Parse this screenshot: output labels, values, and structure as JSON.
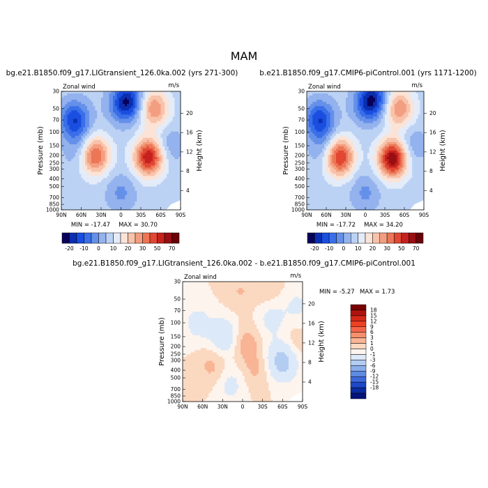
{
  "title": "MAM",
  "chart_data": [
    {
      "type": "heatmap",
      "title": "bg.e21.B1850.f09_g17.LIGtransient_126.0ka.002 (yrs 271-300)",
      "variable": "Zonal wind",
      "units": "m/s",
      "xlabel": "",
      "ylabel": "Pressure (mb)",
      "ylabel_right": "Height (km)",
      "x_ticks": [
        "90N",
        "60N",
        "30N",
        "0",
        "30S",
        "60S",
        "90S"
      ],
      "y_ticks": [
        30,
        50,
        70,
        100,
        150,
        200,
        250,
        300,
        400,
        500,
        700,
        850,
        1000
      ],
      "y_scale": "log",
      "height_ticks": [
        4,
        8,
        12,
        16,
        20
      ],
      "min_label": "MIN = -17.47",
      "max_label": "MAX = 30.70",
      "min": -17.47,
      "max": 30.7,
      "colorbar_levels": [
        -20,
        -10,
        0,
        10,
        20,
        30,
        50,
        70
      ],
      "colorbar_labels": [
        "-20",
        "-10",
        "0",
        "10",
        "20",
        "30",
        "50",
        "70"
      ],
      "colorbar_colors": [
        "#08005a",
        "#0b2fb0",
        "#1a4ee0",
        "#3a6fe8",
        "#6590ea",
        "#93b2ee",
        "#bcd2f4",
        "#e4ecf9",
        "#fbe3d6",
        "#f8c3ab",
        "#f39e80",
        "#ec7656",
        "#e14733",
        "#c5221e",
        "#980e13",
        "#6a0008"
      ],
      "fields": [
        {
          "lat": -70,
          "p": 70,
          "value": -18
        },
        {
          "lat": -62,
          "p": 170,
          "value": -7
        },
        {
          "lat": -40,
          "p": 200,
          "value": 24
        },
        {
          "lat": 0,
          "p": 45,
          "value": -8
        },
        {
          "lat": 0,
          "p": 600,
          "value": -7
        },
        {
          "lat": 12,
          "p": 40,
          "value": -17
        },
        {
          "lat": 42,
          "p": 210,
          "value": 30
        },
        {
          "lat": 50,
          "p": 50,
          "value": 18
        },
        {
          "lat": 72,
          "p": 150,
          "value": -6
        }
      ]
    },
    {
      "type": "heatmap",
      "title": "b.e21.B1850.f09_g17.CMIP6-piControl.001 (yrs 1171-1200)",
      "variable": "Zonal wind",
      "units": "m/s",
      "xlabel": "",
      "ylabel": "Pressure (mb)",
      "ylabel_right": "Height (km)",
      "x_ticks": [
        "90N",
        "60N",
        "30N",
        "0",
        "30S",
        "60S",
        "90S"
      ],
      "y_ticks": [
        30,
        50,
        70,
        100,
        150,
        200,
        250,
        300,
        400,
        500,
        700,
        850,
        1000
      ],
      "y_scale": "log",
      "height_ticks": [
        4,
        8,
        12,
        16,
        20
      ],
      "min_label": "MIN = -17.72",
      "max_label": "MAX = 34.20",
      "min": -17.72,
      "max": 34.2,
      "colorbar_levels": [
        -20,
        -10,
        0,
        10,
        20,
        30,
        50,
        70
      ],
      "colorbar_labels": [
        "-20",
        "-10",
        "0",
        "10",
        "20",
        "30",
        "50",
        "70"
      ],
      "colorbar_colors": [
        "#08005a",
        "#0b2fb0",
        "#1a4ee0",
        "#3a6fe8",
        "#6590ea",
        "#93b2ee",
        "#bcd2f4",
        "#e4ecf9",
        "#fbe3d6",
        "#f8c3ab",
        "#f39e80",
        "#ec7656",
        "#e14733",
        "#c5221e",
        "#980e13",
        "#6a0008"
      ],
      "fields": [
        {
          "lat": -70,
          "p": 70,
          "value": -18
        },
        {
          "lat": -62,
          "p": 170,
          "value": -7
        },
        {
          "lat": -40,
          "p": 210,
          "value": 28
        },
        {
          "lat": 0,
          "p": 45,
          "value": -8
        },
        {
          "lat": 0,
          "p": 600,
          "value": -7
        },
        {
          "lat": 12,
          "p": 38,
          "value": -18
        },
        {
          "lat": 42,
          "p": 220,
          "value": 34
        },
        {
          "lat": 52,
          "p": 50,
          "value": 18
        },
        {
          "lat": 72,
          "p": 150,
          "value": -6
        }
      ]
    },
    {
      "type": "heatmap",
      "title": "bg.e21.B1850.f09_g17.LIGtransient_126.0ka.002 - b.e21.B1850.f09_g17.CMIP6-piControl.001",
      "variable": "Zonal wind",
      "units": "m/s",
      "xlabel": "",
      "ylabel": "Pressure (mb)",
      "ylabel_right": "Height (km)",
      "x_ticks": [
        "90N",
        "60N",
        "30N",
        "0",
        "30S",
        "60S",
        "90S"
      ],
      "y_ticks": [
        30,
        50,
        70,
        100,
        150,
        200,
        250,
        300,
        400,
        500,
        700,
        850,
        1000
      ],
      "y_scale": "log",
      "height_ticks": [
        4,
        8,
        12,
        16,
        20
      ],
      "min_label": "MIN = -5.27",
      "max_label": "MAX = 1.73",
      "min": -5.27,
      "max": 1.73,
      "colorbar_levels": [
        -18,
        -15,
        -12,
        -9,
        -6,
        -3,
        -1,
        0,
        1,
        3,
        6,
        9,
        12,
        15,
        18
      ],
      "colorbar_labels": [
        "18",
        "15",
        "12",
        "9",
        "6",
        "3",
        "1",
        "0",
        "-1",
        "-3",
        "-6",
        "-9",
        "-12",
        "-15",
        "-18"
      ],
      "colorbar_colors": [
        "#7a0000",
        "#b0130f",
        "#d42818",
        "#ee4124",
        "#f3654a",
        "#f68f6e",
        "#f8b494",
        "#fbd8c0",
        "#fdf4ee",
        "#dce9f8",
        "#b3cdf2",
        "#8aaeea",
        "#5f8be2",
        "#3d69dc",
        "#1d48c8",
        "#0b2aa0",
        "#05127a"
      ],
      "fields": [
        {
          "lat": -68,
          "p": 100,
          "value": -1.5
        },
        {
          "lat": -45,
          "p": 350,
          "value": 1.4
        },
        {
          "lat": -28,
          "p": 150,
          "value": -2.5
        },
        {
          "lat": -18,
          "p": 600,
          "value": -1.5
        },
        {
          "lat": -5,
          "p": 40,
          "value": 1
        },
        {
          "lat": 5,
          "p": 180,
          "value": 1.7
        },
        {
          "lat": 20,
          "p": 400,
          "value": 1.2
        },
        {
          "lat": 35,
          "p": 35,
          "value": 1
        },
        {
          "lat": 43,
          "p": 90,
          "value": -1.5
        },
        {
          "lat": 60,
          "p": 300,
          "value": -4.5
        },
        {
          "lat": 74,
          "p": 200,
          "value": 1.2
        },
        {
          "lat": 82,
          "p": 60,
          "value": -1.2
        }
      ]
    }
  ]
}
